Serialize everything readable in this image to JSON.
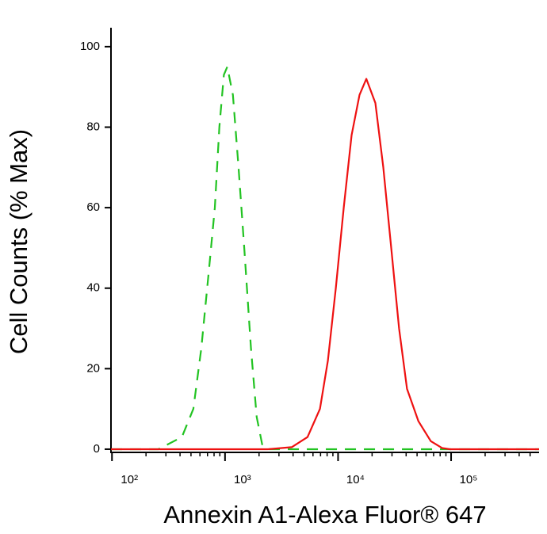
{
  "chart_data": {
    "type": "line",
    "xlabel": "Annexin A1-Alexa Fluor® 647",
    "ylabel": "Cell Counts (% Max)",
    "xscale": "log",
    "xlim": [
      98,
      600000
    ],
    "ylim": [
      -0.6,
      104.7
    ],
    "xticks": [
      {
        "value": 100,
        "label": "10²"
      },
      {
        "value": 1000,
        "label": "10³"
      },
      {
        "value": 10000,
        "label": "10⁴"
      },
      {
        "value": 100000,
        "label": "10⁵"
      }
    ],
    "xminorticks": [
      200,
      300,
      400,
      500,
      600,
      700,
      800,
      900,
      2000,
      3000,
      4000,
      5000,
      6000,
      7000,
      8000,
      9000,
      20000,
      30000,
      40000,
      50000,
      60000,
      70000,
      80000,
      90000,
      200000,
      300000,
      400000,
      500000
    ],
    "yticks": [
      0,
      20,
      40,
      60,
      80,
      100
    ],
    "series": [
      {
        "color": "#22c322",
        "dashed": true,
        "x": [
          98,
          257,
          415,
          525,
          617,
          724,
          813,
          891,
          977,
          1047,
          1175,
          1318,
          1479,
          1698,
          1905,
          2138,
          2399,
          600000
        ],
        "values": [
          0,
          0,
          3,
          10,
          25,
          45,
          60,
          80,
          93,
          95,
          88,
          70,
          50,
          25,
          8,
          1,
          0,
          0
        ]
      },
      {
        "color": "#ee1111",
        "dashed": false,
        "x": [
          98,
          2399,
          3890,
          5370,
          6918,
          8128,
          9550,
          11220,
          13180,
          15490,
          17780,
          21380,
          25120,
          29510,
          34670,
          40740,
          51290,
          66070,
          83180,
          97720,
          600000
        ],
        "values": [
          0,
          0,
          0.5,
          3,
          10,
          22,
          40,
          60,
          78,
          88,
          92,
          86,
          70,
          50,
          30,
          15,
          7,
          2,
          0.3,
          0,
          0
        ]
      }
    ]
  }
}
